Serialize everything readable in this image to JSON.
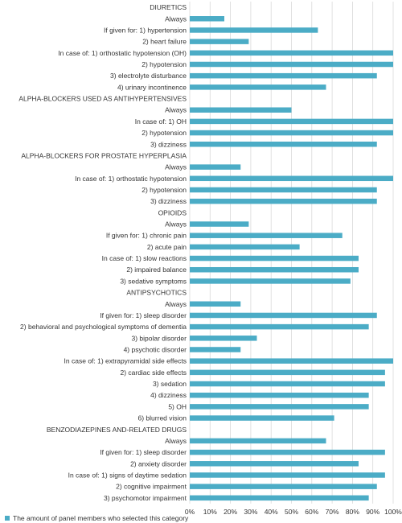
{
  "chart_data": {
    "type": "bar",
    "orientation": "horizontal",
    "colors": {
      "bar": "#4BACC6",
      "grid": "#D9D9D9",
      "text": "#333333"
    },
    "xlim": [
      0,
      100
    ],
    "x_tick_labels": [
      "0%",
      "10%",
      "20%",
      "30%",
      "40%",
      "50%",
      "60%",
      "70%",
      "80%",
      "90%",
      "100%"
    ],
    "legend_position": "bottom-left",
    "series": [
      {
        "name": "The amount of panel members who selected this category"
      }
    ],
    "categories": [
      {
        "label": "DIURETICS",
        "value": null,
        "header": true
      },
      {
        "label": "Always",
        "value": 17
      },
      {
        "label": "If given for: 1) hypertension",
        "value": 63
      },
      {
        "label": "2) heart failure",
        "value": 29
      },
      {
        "label": "In case of: 1) orthostatic hypotension (OH)",
        "value": 100
      },
      {
        "label": "2) hypotension",
        "value": 100
      },
      {
        "label": "3) electrolyte disturbance",
        "value": 92
      },
      {
        "label": "4) urinary incontinence",
        "value": 67
      },
      {
        "label": "ALPHA-BLOCKERS USED AS ANTIHYPERTENSIVES",
        "value": null,
        "header": true
      },
      {
        "label": "Always",
        "value": 50
      },
      {
        "label": "In case of: 1) OH",
        "value": 100
      },
      {
        "label": "2) hypotension",
        "value": 100
      },
      {
        "label": "3) dizziness",
        "value": 92
      },
      {
        "label": "ALPHA-BLOCKERS FOR PROSTATE HYPERPLASIA",
        "value": null,
        "header": true
      },
      {
        "label": "Always",
        "value": 25
      },
      {
        "label": "In case of: 1) orthostatic hypotension",
        "value": 100
      },
      {
        "label": "2) hypotension",
        "value": 92
      },
      {
        "label": "3) dizziness",
        "value": 92
      },
      {
        "label": "OPIOIDS",
        "value": null,
        "header": true
      },
      {
        "label": "Always",
        "value": 29
      },
      {
        "label": "If given for: 1) chronic pain",
        "value": 75
      },
      {
        "label": "2) acute pain",
        "value": 54
      },
      {
        "label": "In case of: 1) slow reactions",
        "value": 83
      },
      {
        "label": "2) impaired balance",
        "value": 83
      },
      {
        "label": "3) sedative symptoms",
        "value": 79
      },
      {
        "label": "ANTIPSYCHOTICS",
        "value": null,
        "header": true
      },
      {
        "label": "Always",
        "value": 25
      },
      {
        "label": "If given for: 1) sleep disorder",
        "value": 92
      },
      {
        "label": "2) behavioral and psychological symptoms of dementia",
        "value": 88
      },
      {
        "label": "3) bipolar disorder",
        "value": 33
      },
      {
        "label": "4) psychotic disorder",
        "value": 25
      },
      {
        "label": "In case of: 1) extrapyramidal side effects",
        "value": 100
      },
      {
        "label": "2) cardiac side effects",
        "value": 96
      },
      {
        "label": "3) sedation",
        "value": 96
      },
      {
        "label": "4) dizziness",
        "value": 88
      },
      {
        "label": "5) OH",
        "value": 88
      },
      {
        "label": "6) blurred vision",
        "value": 71
      },
      {
        "label": "BENZODIAZEPINES AND-RELATED DRUGS",
        "value": null,
        "header": true
      },
      {
        "label": "Always",
        "value": 67
      },
      {
        "label": "If given for: 1) sleep disorder",
        "value": 96
      },
      {
        "label": "2) anxiety disorder",
        "value": 83
      },
      {
        "label": "In case of: 1) signs of daytime sedation",
        "value": 96
      },
      {
        "label": "2) cognitive impairment",
        "value": 92
      },
      {
        "label": "3) psychomotor impairment",
        "value": 88
      }
    ]
  }
}
